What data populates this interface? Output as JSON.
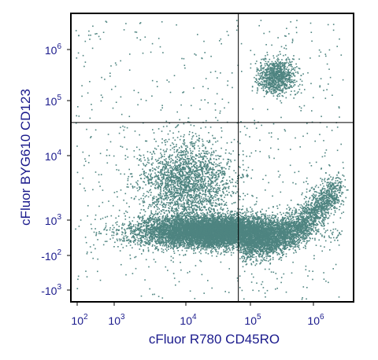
{
  "chart_data": {
    "type": "scatter",
    "title": "",
    "xlabel": "cFluor R780 CD45RO",
    "ylabel": "cFluor BYG610 CD123",
    "x_scale": "biexponential",
    "y_scale": "biexponential",
    "x_ticks": [
      {
        "value": 100,
        "base": "10",
        "exp": "2"
      },
      {
        "value": 1000,
        "base": "10",
        "exp": "3"
      },
      {
        "value": 10000,
        "base": "10",
        "exp": "4"
      },
      {
        "value": 100000,
        "base": "10",
        "exp": "5"
      },
      {
        "value": 1000000,
        "base": "10",
        "exp": "6"
      }
    ],
    "y_ticks": [
      {
        "value": -1000,
        "base": "-10",
        "exp": "3"
      },
      {
        "value": -100,
        "base": "-10",
        "exp": "2"
      },
      {
        "value": 1000,
        "base": "10",
        "exp": "3"
      },
      {
        "value": 10000,
        "base": "10",
        "exp": "4"
      },
      {
        "value": 100000,
        "base": "10",
        "exp": "5"
      },
      {
        "value": 1000000,
        "base": "10",
        "exp": "6"
      }
    ],
    "quadrant_gate": {
      "x": 65000,
      "y": 40000
    },
    "point_color": "#4e8480",
    "grid": false,
    "populations": [
      {
        "name": "",
        "x_center": 30000,
        "y_center": 200,
        "count": 9000
      },
      {
        "name": "",
        "x_center": 1000000,
        "y_center": 1000,
        "count": 2500
      },
      {
        "name": "",
        "x_center": 10000,
        "y_center": 4000,
        "count": 2200
      },
      {
        "name": "",
        "x_center": 250000,
        "y_center": 300000,
        "count": 900
      }
    ]
  }
}
